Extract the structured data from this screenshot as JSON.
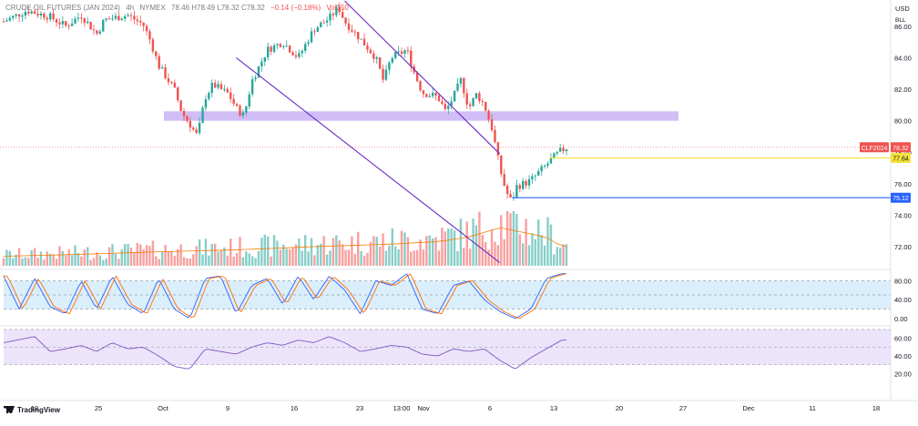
{
  "legend": {
    "symbol": "CRUDE OIL FUTURES (JAN 2024)",
    "interval": "4h",
    "exchange": "NYMEX",
    "ohlc": "78.46 H78.49 L78.32 C78.32",
    "change": "−0.14 (−0.18%)",
    "vol": "Vol150"
  },
  "price_axis": {
    "currency": "USD",
    "mode": "BLL",
    "ticks": [
      "86.00",
      "84.00",
      "82.00",
      "80.00",
      "78.00",
      "76.00",
      "74.00",
      "72.00"
    ]
  },
  "badges": {
    "symbol_label": "CLF2024",
    "last_price": "78.32",
    "yellow_level": "77.64",
    "blue_level": "75.12"
  },
  "oscillator1": {
    "ticks": [
      "80.00",
      "40.00",
      "0.00"
    ]
  },
  "oscillator2": {
    "ticks": [
      "60.00",
      "40.00",
      "20.00"
    ]
  },
  "time_axis": {
    "labels": [
      "18",
      "25",
      "Oct",
      "9",
      "16",
      "23",
      "13:00",
      "Nov",
      "6",
      "13",
      "20",
      "27",
      "Dec",
      "11",
      "18"
    ]
  },
  "branding": {
    "text": "TradingView"
  },
  "colors": {
    "up": "#26a69a",
    "down": "#ef5350",
    "channel": "#6a2bc4",
    "zone": "#c9b3f5",
    "yellow_line": "#f5e23a",
    "blue_line": "#2962ff",
    "stoch_band": "#dbeefc",
    "rsi_band": "#ece4fb"
  },
  "chart_data": {
    "type": "candlestick",
    "price_range": [
      70.8,
      87.2
    ],
    "channel_upper": [
      [
        22,
        87.6
      ],
      [
        32,
        77.9
      ]
    ],
    "channel_lower": [
      [
        15,
        84.0
      ],
      [
        32,
        71.0
      ]
    ],
    "resistance_zone": [
      80.0,
      80.6
    ],
    "horizontal_levels": [
      77.64,
      75.12
    ],
    "last_price": 78.32,
    "price_path": [
      [
        0,
        86.3
      ],
      [
        1.5,
        87.0
      ],
      [
        3,
        86.6
      ],
      [
        4,
        86.0
      ],
      [
        5,
        86.7
      ],
      [
        6,
        85.5
      ],
      [
        6.5,
        86.4
      ],
      [
        8,
        86.7
      ],
      [
        9,
        86.1
      ],
      [
        9.5,
        85.0
      ],
      [
        10,
        83.5
      ],
      [
        11,
        82.0
      ],
      [
        11.5,
        80.5
      ],
      [
        12,
        79.8
      ],
      [
        12.5,
        79.0
      ],
      [
        13,
        81.5
      ],
      [
        13.5,
        82.3
      ],
      [
        14,
        82.0
      ],
      [
        14.5,
        81.7
      ],
      [
        15,
        80.8
      ],
      [
        15.5,
        80.3
      ],
      [
        16,
        82.5
      ],
      [
        17,
        84.5
      ],
      [
        18,
        85.0
      ],
      [
        19,
        84.0
      ],
      [
        20,
        85.8
      ],
      [
        21,
        86.5
      ],
      [
        21.6,
        87.2
      ],
      [
        22,
        86.3
      ],
      [
        23,
        85.2
      ],
      [
        24,
        84.0
      ],
      [
        24.5,
        82.5
      ],
      [
        25,
        84.0
      ],
      [
        26,
        84.5
      ],
      [
        26.5,
        83.0
      ],
      [
        27,
        81.8
      ],
      [
        28,
        81.5
      ],
      [
        28.5,
        80.6
      ],
      [
        29,
        81.5
      ],
      [
        29.5,
        82.6
      ],
      [
        30,
        80.8
      ],
      [
        30.5,
        81.7
      ],
      [
        31,
        81.0
      ],
      [
        31.5,
        79.5
      ],
      [
        32,
        77.0
      ],
      [
        32.4,
        75.5
      ],
      [
        32.8,
        74.8
      ],
      [
        33,
        75.8
      ],
      [
        34,
        76.2
      ],
      [
        35,
        77.2
      ],
      [
        35.8,
        78.0
      ],
      [
        36.3,
        78.3
      ]
    ],
    "stoch_path": [
      [
        0,
        90
      ],
      [
        1,
        20
      ],
      [
        2,
        85
      ],
      [
        3,
        25
      ],
      [
        4,
        10
      ],
      [
        5,
        80
      ],
      [
        6,
        20
      ],
      [
        7,
        90
      ],
      [
        8,
        30
      ],
      [
        9,
        10
      ],
      [
        10,
        85
      ],
      [
        11,
        20
      ],
      [
        12,
        0
      ],
      [
        13,
        85
      ],
      [
        14,
        90
      ],
      [
        15,
        10
      ],
      [
        16,
        70
      ],
      [
        17,
        85
      ],
      [
        18,
        30
      ],
      [
        19,
        90
      ],
      [
        20,
        40
      ],
      [
        21,
        90
      ],
      [
        22,
        60
      ],
      [
        23,
        10
      ],
      [
        24,
        80
      ],
      [
        25,
        70
      ],
      [
        26,
        95
      ],
      [
        27,
        20
      ],
      [
        28,
        10
      ],
      [
        29,
        70
      ],
      [
        30,
        80
      ],
      [
        31,
        40
      ],
      [
        32,
        15
      ],
      [
        33,
        0
      ],
      [
        34,
        20
      ],
      [
        35,
        85
      ],
      [
        36,
        95
      ]
    ],
    "rsi_path": [
      [
        0,
        55
      ],
      [
        2,
        62
      ],
      [
        3,
        45
      ],
      [
        4,
        48
      ],
      [
        5,
        52
      ],
      [
        6,
        45
      ],
      [
        7,
        55
      ],
      [
        8,
        48
      ],
      [
        9,
        50
      ],
      [
        10,
        40
      ],
      [
        11,
        28
      ],
      [
        12,
        25
      ],
      [
        13,
        48
      ],
      [
        14,
        45
      ],
      [
        15,
        42
      ],
      [
        16,
        50
      ],
      [
        17,
        55
      ],
      [
        18,
        52
      ],
      [
        19,
        58
      ],
      [
        20,
        55
      ],
      [
        21,
        62
      ],
      [
        22,
        55
      ],
      [
        23,
        45
      ],
      [
        24,
        48
      ],
      [
        25,
        52
      ],
      [
        26,
        50
      ],
      [
        27,
        42
      ],
      [
        28,
        40
      ],
      [
        29,
        48
      ],
      [
        30,
        45
      ],
      [
        31,
        48
      ],
      [
        32,
        35
      ],
      [
        33,
        25
      ],
      [
        34,
        38
      ],
      [
        35,
        48
      ],
      [
        36,
        58
      ]
    ],
    "volume_path": [
      [
        0,
        1.5
      ],
      [
        5,
        1.8
      ],
      [
        10,
        2.2
      ],
      [
        15,
        2.5
      ],
      [
        20,
        3.0
      ],
      [
        25,
        3.4
      ],
      [
        28,
        3.8
      ],
      [
        30,
        4.5
      ],
      [
        32,
        6.0
      ],
      [
        33,
        5.5
      ],
      [
        34,
        5.0
      ],
      [
        35,
        4.5
      ],
      [
        36,
        3.0
      ]
    ]
  }
}
